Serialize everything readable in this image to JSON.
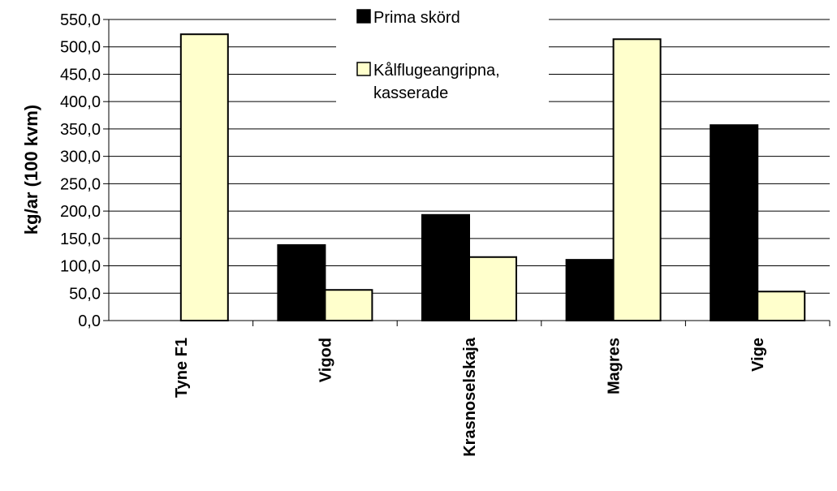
{
  "chart_data": {
    "type": "bar",
    "categories": [
      "Tyne F1",
      "Vigod",
      "Krasnoselskaja",
      "Magres",
      "Vige"
    ],
    "series": [
      {
        "name": "Prima skörd",
        "color": "#000000",
        "values": [
          0,
          138,
          193,
          111,
          357
        ]
      },
      {
        "name": "Kålflugeangripna, kasserade",
        "color": "#ffffcc",
        "values": [
          523,
          56,
          116,
          514,
          53
        ]
      }
    ],
    "ylabel": "kg/ar (100 kvm)",
    "ylim": [
      0,
      550
    ],
    "ytick_step": 50,
    "ytick_labels": [
      "0,0",
      "50,0",
      "100,0",
      "150,0",
      "200,0",
      "250,0",
      "300,0",
      "350,0",
      "400,0",
      "450,0",
      "500,0",
      "550,0"
    ],
    "grid": true,
    "legend_position": "top-center",
    "legend_lines": [
      [
        "Prima skörd"
      ],
      [
        "Kålflugeangripna,",
        "kasserade"
      ]
    ]
  }
}
